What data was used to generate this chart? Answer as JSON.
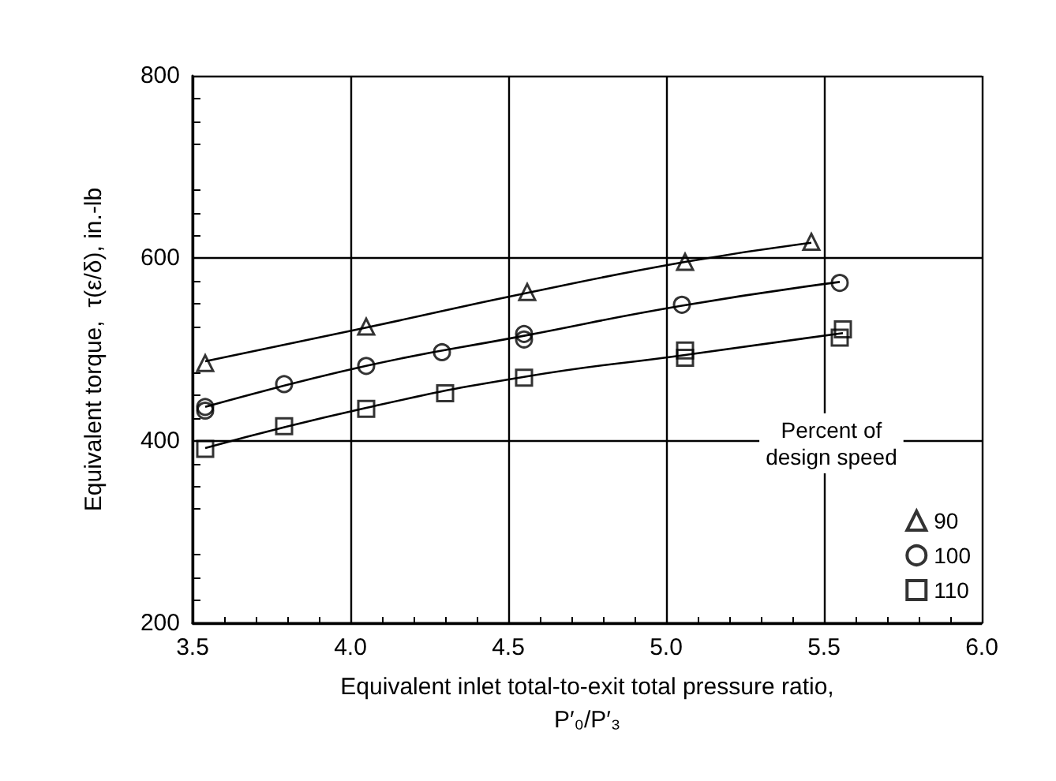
{
  "chart_data": {
    "type": "scatter",
    "xlabel": "Equivalent inlet total-to-exit total pressure ratio,\nP′₀/P′₃",
    "ylabel": "Equivalent torque,  τ(ε/δ), in.-lb",
    "legend_title": "Percent of\ndesign speed",
    "xlim": [
      3.5,
      6.0
    ],
    "xticks": [
      3.5,
      {
        "value": 4,
        "label": "4.0"
      },
      4.5,
      {
        "value": 5,
        "label": "5.0"
      },
      5.5,
      {
        "value": 6,
        "label": "6.0"
      }
    ],
    "ylim": [
      200,
      800
    ],
    "yticks": [
      200,
      400,
      600,
      800
    ],
    "grid": true,
    "legend": "bottom right",
    "series": [
      {
        "name": "90",
        "marker": "triangle",
        "color": "#000000",
        "x": [
          3.54,
          4.05,
          4.56,
          5.06,
          5.46
        ],
        "values": [
          485,
          525,
          563,
          596,
          618
        ]
      },
      {
        "name": "100",
        "marker": "circle",
        "color": "#000000",
        "x": [
          3.54,
          3.54,
          3.79,
          4.05,
          4.29,
          4.55,
          4.55,
          5.05,
          5.55
        ],
        "values": [
          437,
          433,
          462,
          482,
          497,
          517,
          511,
          549,
          573
        ]
      },
      {
        "name": "110",
        "marker": "square",
        "color": "#000000",
        "x": [
          3.54,
          3.79,
          4.05,
          4.3,
          4.55,
          5.06,
          5.06,
          5.56,
          5.55
        ],
        "values": [
          391,
          416,
          435,
          452,
          469,
          499,
          491,
          522,
          513
        ]
      },
      {
        "type": "line",
        "marker": "none",
        "color": "#000000",
        "x": [
          3.54,
          4.05,
          4.56,
          5.06,
          5.46
        ],
        "values": [
          487,
          524,
          562,
          596,
          617
        ]
      },
      {
        "type": "line",
        "marker": "none",
        "color": "#000000",
        "x": [
          3.54,
          4.05,
          4.55,
          5.05,
          5.55
        ],
        "values": [
          437,
          482,
          515,
          548,
          574
        ]
      },
      {
        "type": "line",
        "marker": "none",
        "color": "#000000",
        "x": [
          3.54,
          4.05,
          4.55,
          5.06,
          5.56
        ],
        "values": [
          392,
          436,
          470,
          494,
          518
        ]
      }
    ]
  }
}
